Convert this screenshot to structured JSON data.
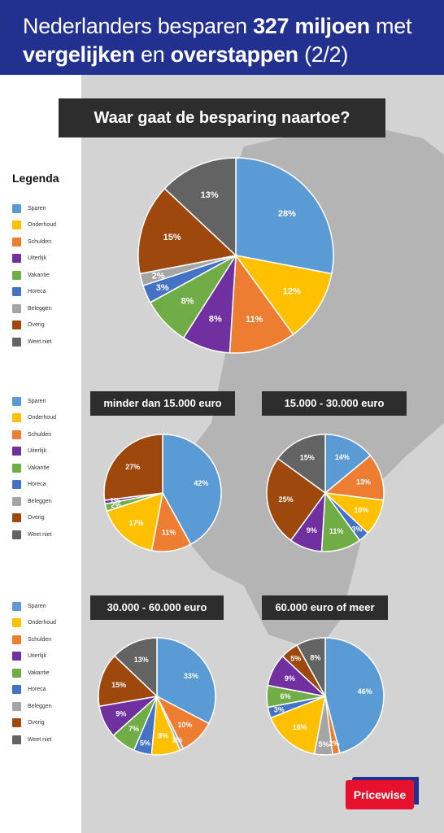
{
  "header": {
    "line1_pre": "Nederlanders besparen ",
    "line1_bold": "327 miljoen",
    "line1_post": " met",
    "line2_bold": "vergelijken",
    "line2_mid": " en ",
    "line2_bold2": "overstappen",
    "line2_post": " (2/2)"
  },
  "main_title": "Waar gaat de besparing naartoe?",
  "legend_title": "Legenda",
  "legend": [
    {
      "label": "Sparen",
      "color": "#5b9bd5"
    },
    {
      "label": "Onderhoud",
      "color": "#ffc000"
    },
    {
      "label": "Schulden",
      "color": "#ed7d31"
    },
    {
      "label": "Uiterlijk",
      "color": "#7030a0"
    },
    {
      "label": "Vakantie",
      "color": "#70ad47"
    },
    {
      "label": "Horeca",
      "color": "#4472c4"
    },
    {
      "label": "Beleggen",
      "color": "#a5a5a5"
    },
    {
      "label": "Overig",
      "color": "#9e480e"
    },
    {
      "label": "Weet niet",
      "color": "#636363"
    }
  ],
  "chart_data": [
    {
      "type": "pie",
      "title": "",
      "categories": [
        "Sparen",
        "Onderhoud",
        "Schulden",
        "Uiterlijk",
        "Vakantie",
        "Horeca",
        "Beleggen",
        "Overig",
        "Weet niet"
      ],
      "values": [
        28,
        12,
        11,
        8,
        8,
        3,
        2,
        15,
        13
      ]
    },
    {
      "type": "pie",
      "title": "minder dan 15.000 euro",
      "categories": [
        "Sparen",
        "Schulden",
        "Onderhoud",
        "Vakantie",
        "Uiterlijk",
        "Overig"
      ],
      "values": [
        42,
        11,
        17,
        2,
        1,
        27
      ]
    },
    {
      "type": "pie",
      "title": "15.000 - 30.000 euro",
      "categories": [
        "Sparen",
        "Schulden",
        "Onderhoud",
        "Horeca",
        "Vakantie",
        "Uiterlijk",
        "Overig",
        "Weet niet"
      ],
      "values": [
        14,
        13,
        10,
        3,
        11,
        9,
        25,
        15
      ]
    },
    {
      "type": "pie",
      "title": "30.000 - 60.000 euro",
      "categories": [
        "Sparen",
        "Schulden",
        "Beleggen",
        "Onderhoud",
        "Horeca",
        "Vakantie",
        "Uiterlijk",
        "Overig",
        "Weet niet"
      ],
      "values": [
        33,
        10,
        1,
        8,
        5,
        7,
        9,
        15,
        13
      ]
    },
    {
      "type": "pie",
      "title": "60.000 euro of meer",
      "categories": [
        "Sparen",
        "Schulden",
        "Beleggen",
        "Onderhoud",
        "Horeca",
        "Vakantie",
        "Uiterlijk",
        "Overig",
        "Weet niet"
      ],
      "values": [
        46,
        2,
        5,
        16,
        3,
        6,
        9,
        5,
        8
      ]
    }
  ],
  "logo": {
    "text": "Pricewise",
    "color": "#e8112d",
    "accent": "#22318f"
  }
}
